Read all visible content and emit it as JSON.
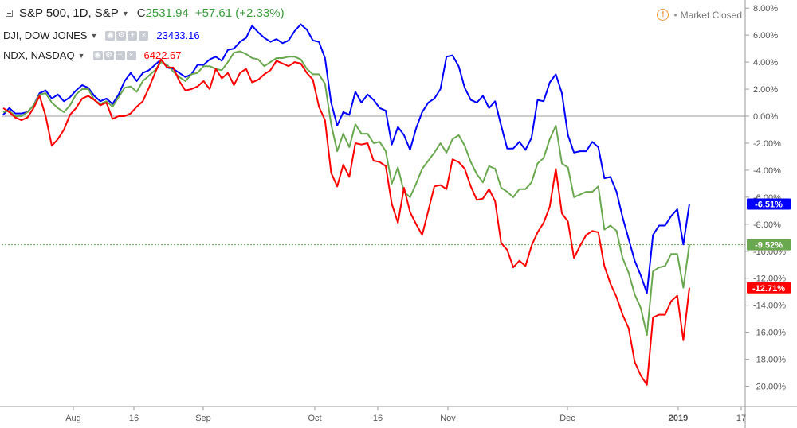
{
  "header": {
    "main_title": "S&P 500, 1D, S&P",
    "price_prefix": "C",
    "price": "2531.94",
    "change": "+57.61 (+2.33%)",
    "price_color": "#3c9c3c",
    "status": "Market Closed"
  },
  "legends": [
    {
      "title": "DJI, DOW JONES",
      "value": "23433.16",
      "color": "#0000ff"
    },
    {
      "title": "NDX, NASDAQ",
      "value": "6422.67",
      "color": "#ff0000"
    }
  ],
  "icons": [
    "collapse-icon",
    "chevron-down-icon",
    "eye-icon",
    "gear-icon",
    "plus-icon",
    "close-icon",
    "warning-icon"
  ],
  "chart_data": {
    "type": "line",
    "x_ticks": [
      "Aug",
      "16",
      "Sep",
      "Oct",
      "16",
      "Nov",
      "Dec",
      "2019",
      "17"
    ],
    "y_ticks": [
      "8.00%",
      "6.00%",
      "4.00%",
      "2.00%",
      "0.00%",
      "-2.00%",
      "-4.00%",
      "-6.00%",
      "-8.00%",
      "-10.00%",
      "-12.00%",
      "-14.00%",
      "-16.00%",
      "-18.00%",
      "-20.00%"
    ],
    "ylim": [
      -21.5,
      8.6
    ],
    "y_unit": "%",
    "baseline_color": "#9b9b9b",
    "series": [
      {
        "color": "#0000ff",
        "end_label": "-6.51%",
        "values": [
          0.1,
          0.6,
          0.2,
          0.2,
          0.3,
          0.8,
          1.7,
          1.9,
          1.3,
          1.6,
          1.1,
          1.4,
          1.9,
          2.3,
          2.1,
          1.5,
          1.1,
          1.3,
          0.9,
          1.6,
          2.6,
          3.2,
          2.6,
          3.2,
          3.4,
          3.8,
          4.2,
          3.6,
          3.5,
          3.2,
          2.9,
          3.1,
          3.8,
          3.8,
          4.2,
          4.4,
          4.1,
          4.9,
          5.0,
          5.5,
          5.8,
          6.7,
          6.2,
          5.8,
          5.5,
          5.7,
          5.4,
          5.6,
          6.3,
          6.8,
          6.4,
          5.6,
          5.5,
          4.3,
          1.0,
          -0.7,
          0.3,
          0.1,
          1.8,
          1.0,
          1.6,
          1.2,
          0.6,
          0.4,
          -2.1,
          -0.8,
          -1.4,
          -2.5,
          -0.9,
          0.3,
          1.0,
          1.3,
          2.0,
          4.4,
          4.5,
          3.7,
          2.1,
          1.2,
          1.0,
          1.5,
          0.6,
          1.1,
          -0.7,
          -2.4,
          -2.4,
          -1.9,
          -2.5,
          -1.6,
          1.2,
          1.1,
          2.5,
          3.1,
          1.7,
          -1.4,
          -2.7,
          -2.6,
          -2.6,
          -1.9,
          -2.3,
          -4.6,
          -4.5,
          -5.6,
          -7.5,
          -9.1,
          -10.7,
          -11.8,
          -13.1,
          -8.8,
          -8.1,
          -8.1,
          -7.4,
          -6.9,
          -9.5,
          -6.5
        ]
      },
      {
        "color": "#6aa84f",
        "end_label": "-9.52%",
        "values": [
          0.3,
          0.4,
          0.0,
          0.0,
          0.3,
          0.8,
          1.6,
          1.7,
          1.0,
          0.6,
          0.3,
          0.8,
          1.6,
          2.0,
          2.0,
          1.2,
          0.9,
          1.1,
          0.7,
          1.4,
          2.1,
          2.2,
          1.8,
          2.6,
          3.0,
          3.4,
          4.0,
          3.8,
          3.3,
          2.9,
          2.6,
          3.1,
          3.2,
          3.7,
          3.7,
          3.5,
          3.4,
          4.0,
          4.7,
          4.8,
          4.6,
          4.3,
          4.2,
          3.7,
          4.0,
          4.3,
          4.3,
          4.4,
          4.4,
          4.2,
          3.5,
          3.1,
          3.1,
          2.4,
          -0.6,
          -2.6,
          -1.3,
          -2.3,
          -0.6,
          -1.3,
          -1.3,
          -2.0,
          -1.9,
          -2.6,
          -5.0,
          -3.8,
          -5.6,
          -6.0,
          -5.0,
          -3.9,
          -3.3,
          -2.7,
          -2.0,
          -2.7,
          -1.7,
          -1.4,
          -2.2,
          -3.4,
          -4.3,
          -4.9,
          -3.7,
          -3.9,
          -5.3,
          -5.6,
          -6.0,
          -5.4,
          -5.4,
          -4.9,
          -3.5,
          -3.1,
          -1.7,
          -0.7,
          -3.5,
          -3.8,
          -6.0,
          -5.8,
          -5.6,
          -5.6,
          -5.2,
          -8.4,
          -8.1,
          -8.5,
          -10.5,
          -11.6,
          -13.2,
          -14.2,
          -16.2,
          -11.5,
          -11.2,
          -11.1,
          -10.2,
          -10.2,
          -12.7,
          -9.5
        ]
      },
      {
        "color": "#ff0000",
        "end_label": "-12.71%",
        "values": [
          0.6,
          0.3,
          -0.1,
          -0.3,
          -0.1,
          0.6,
          1.5,
          0.0,
          -2.2,
          -1.7,
          -1.0,
          0.1,
          0.6,
          1.3,
          1.5,
          1.2,
          0.8,
          1.0,
          -0.2,
          0.0,
          0.0,
          0.2,
          0.7,
          1.1,
          2.1,
          3.2,
          4.2,
          3.6,
          3.6,
          2.6,
          1.9,
          2.0,
          2.2,
          2.6,
          2.0,
          3.5,
          2.8,
          3.2,
          2.3,
          3.2,
          3.5,
          2.5,
          2.7,
          3.1,
          3.4,
          4.1,
          3.9,
          3.7,
          4.0,
          3.9,
          3.2,
          2.7,
          0.7,
          -0.3,
          -4.2,
          -5.2,
          -3.6,
          -4.5,
          -2.0,
          -2.1,
          -2.0,
          -3.3,
          -3.4,
          -3.7,
          -6.5,
          -7.9,
          -5.3,
          -7.1,
          -8.0,
          -8.8,
          -7.0,
          -5.2,
          -5.1,
          -5.4,
          -3.2,
          -3.4,
          -3.9,
          -5.2,
          -6.2,
          -6.1,
          -5.4,
          -6.3,
          -9.4,
          -9.9,
          -11.2,
          -10.7,
          -11.1,
          -9.6,
          -8.6,
          -7.9,
          -6.7,
          -3.9,
          -7.2,
          -7.8,
          -10.5,
          -9.6,
          -8.8,
          -8.5,
          -8.6,
          -11.1,
          -12.4,
          -13.4,
          -14.7,
          -15.7,
          -18.2,
          -19.2,
          -19.9,
          -14.9,
          -14.7,
          -14.7,
          -13.7,
          -13.3,
          -16.6,
          -12.7
        ]
      }
    ],
    "highlight_line": {
      "value": -9.52,
      "color": "#6aa84f"
    }
  }
}
